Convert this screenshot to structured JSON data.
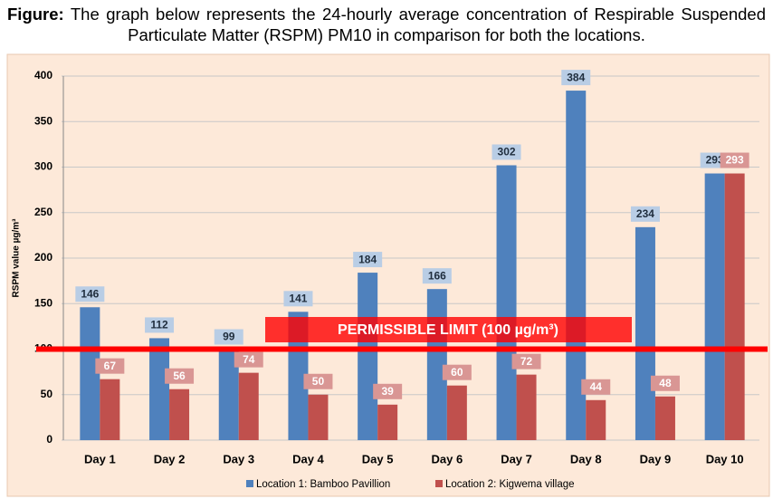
{
  "caption": {
    "label": "Figure:",
    "text": "The graph below represents the 24-hourly average concentration of Respirable Suspended Particulate Matter (RSPM) PM10 in comparison for both the locations."
  },
  "chart_data": {
    "type": "bar",
    "y_label": "RSPM value  µg/m³",
    "categories": [
      "Day 1",
      "Day 2",
      "Day 3",
      "Day 4",
      "Day 5",
      "Day 6",
      "Day 7",
      "Day 8",
      "Day 9",
      "Day 10"
    ],
    "series": [
      {
        "name": "Location 1: Bamboo Pavillion",
        "color": "#4f81bd",
        "values": [
          146,
          112,
          99,
          141,
          184,
          166,
          302,
          384,
          234,
          293
        ]
      },
      {
        "name": "Location 2: Kigwema village",
        "color": "#c0504d",
        "values": [
          67,
          56,
          74,
          50,
          39,
          60,
          72,
          44,
          48,
          293
        ]
      }
    ],
    "ylim": [
      0,
      400
    ],
    "yticks": [
      0,
      50,
      100,
      150,
      200,
      250,
      300,
      350,
      400
    ],
    "grid": true,
    "limit": {
      "value": 100,
      "label": "PERMISSIBLE LIMIT (100 µg/m³)",
      "color": "#ff0000"
    },
    "legend": "bottom"
  }
}
